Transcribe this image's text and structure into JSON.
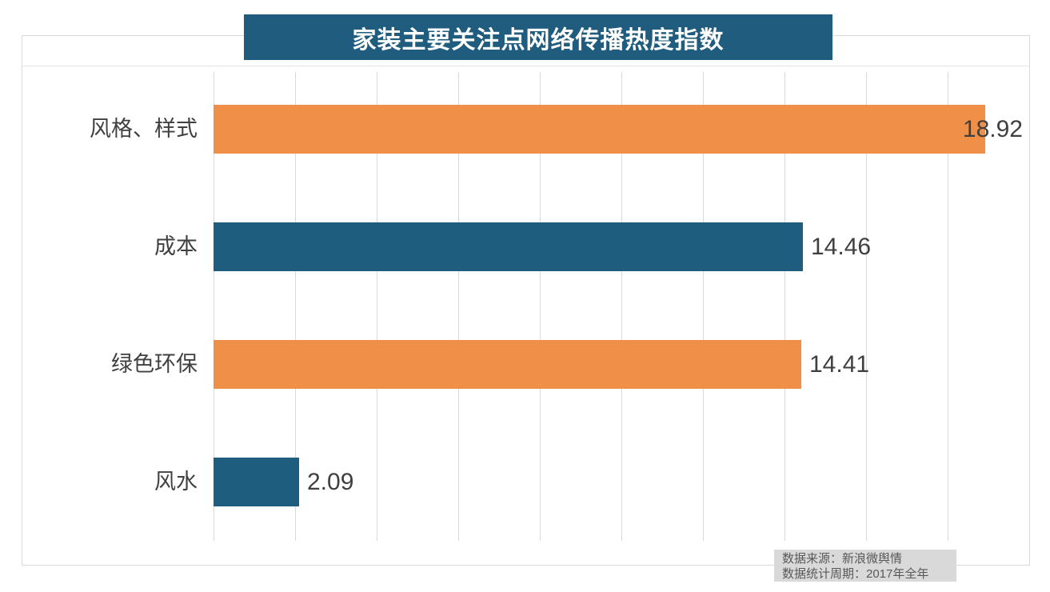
{
  "title": "家装主要关注点网络传播热度指数",
  "source_note": {
    "line1": "数据来源：新浪微舆情",
    "line2": "数据统计周期：2017年全年"
  },
  "colors": {
    "title_bg": "#1f5c7e",
    "title_text": "#ffffff",
    "orange": "#ef8f48",
    "teal": "#1f5d7e",
    "grid": "#d9d9d9",
    "category_text": "#404040",
    "value_text": "#3f3f3f",
    "note_bg": "#d9d9d9",
    "note_text": "#595959"
  },
  "chart_data": {
    "type": "bar",
    "orientation": "horizontal",
    "title": "家装主要关注点网络传播热度指数",
    "categories": [
      "风格、样式",
      "成本",
      "绿色环保",
      "风水"
    ],
    "values": [
      18.92,
      14.46,
      14.41,
      2.09
    ],
    "data_labels": [
      "18.92",
      "14.46",
      "14.41",
      "2.09"
    ],
    "bar_color_keys": [
      "orange",
      "teal",
      "orange",
      "teal"
    ],
    "xlim": [
      0,
      20
    ],
    "gridline_step": 2,
    "grid": true,
    "axis_tick_labels_visible": false,
    "legend": "none",
    "value_axis_label": "",
    "category_axis_label": ""
  }
}
